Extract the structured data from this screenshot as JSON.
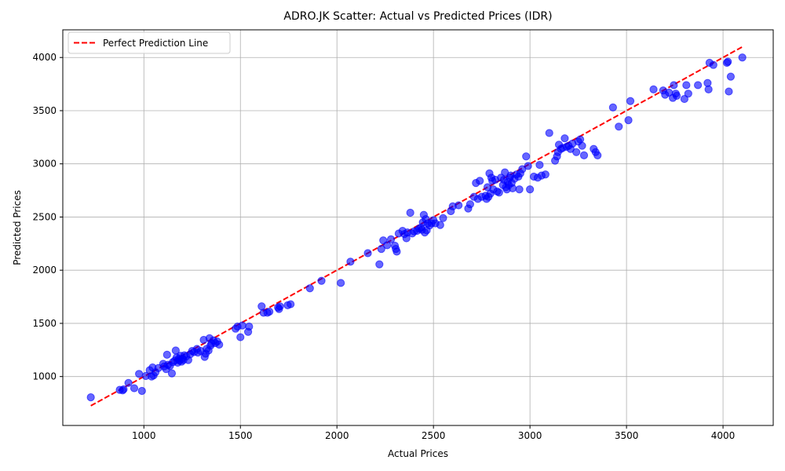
{
  "chart_data": {
    "type": "scatter",
    "title": "ADRO.JK Scatter: Actual vs Predicted Prices (IDR)",
    "xlabel": "Actual Prices",
    "ylabel": "Predicted Prices",
    "xlim": [
      580,
      4260
    ],
    "ylim": [
      540,
      4260
    ],
    "xticks": [
      1000,
      1500,
      2000,
      2500,
      3000,
      3500,
      4000
    ],
    "yticks": [
      1000,
      1500,
      2000,
      2500,
      3000,
      3500,
      4000
    ],
    "grid": true,
    "legend_position": "top-left",
    "colors": {
      "points": "#0000ff",
      "reference_line": "#ff0000"
    },
    "series": [
      {
        "name": "",
        "style": "markers",
        "points": [
          [
            725,
            805
          ],
          [
            875,
            875
          ],
          [
            890,
            870
          ],
          [
            895,
            880
          ],
          [
            920,
            940
          ],
          [
            950,
            890
          ],
          [
            975,
            1025
          ],
          [
            990,
            865
          ],
          [
            1010,
            1005
          ],
          [
            1030,
            1060
          ],
          [
            1040,
            1000
          ],
          [
            1045,
            1085
          ],
          [
            1050,
            1010
          ],
          [
            1060,
            1040
          ],
          [
            1075,
            1080
          ],
          [
            1100,
            1120
          ],
          [
            1105,
            1095
          ],
          [
            1115,
            1070
          ],
          [
            1120,
            1205
          ],
          [
            1125,
            1110
          ],
          [
            1135,
            1100
          ],
          [
            1145,
            1030
          ],
          [
            1150,
            1135
          ],
          [
            1160,
            1150
          ],
          [
            1165,
            1245
          ],
          [
            1170,
            1180
          ],
          [
            1175,
            1130
          ],
          [
            1180,
            1165
          ],
          [
            1185,
            1150
          ],
          [
            1190,
            1195
          ],
          [
            1195,
            1140
          ],
          [
            1200,
            1170
          ],
          [
            1205,
            1155
          ],
          [
            1210,
            1200
          ],
          [
            1220,
            1190
          ],
          [
            1230,
            1155
          ],
          [
            1240,
            1210
          ],
          [
            1250,
            1240
          ],
          [
            1260,
            1230
          ],
          [
            1275,
            1260
          ],
          [
            1280,
            1225
          ],
          [
            1295,
            1240
          ],
          [
            1310,
            1345
          ],
          [
            1315,
            1185
          ],
          [
            1320,
            1215
          ],
          [
            1325,
            1260
          ],
          [
            1335,
            1245
          ],
          [
            1340,
            1360
          ],
          [
            1345,
            1290
          ],
          [
            1350,
            1310
          ],
          [
            1360,
            1340
          ],
          [
            1370,
            1315
          ],
          [
            1380,
            1330
          ],
          [
            1390,
            1300
          ],
          [
            1475,
            1450
          ],
          [
            1485,
            1470
          ],
          [
            1500,
            1370
          ],
          [
            1510,
            1480
          ],
          [
            1540,
            1420
          ],
          [
            1545,
            1470
          ],
          [
            1610,
            1660
          ],
          [
            1620,
            1600
          ],
          [
            1640,
            1600
          ],
          [
            1650,
            1610
          ],
          [
            1695,
            1650
          ],
          [
            1700,
            1635
          ],
          [
            1705,
            1660
          ],
          [
            1745,
            1670
          ],
          [
            1760,
            1680
          ],
          [
            1860,
            1830
          ],
          [
            1920,
            1900
          ],
          [
            2020,
            1880
          ],
          [
            2070,
            2080
          ],
          [
            2160,
            2160
          ],
          [
            2220,
            2055
          ],
          [
            2230,
            2200
          ],
          [
            2240,
            2280
          ],
          [
            2260,
            2235
          ],
          [
            2280,
            2290
          ],
          [
            2300,
            2230
          ],
          [
            2305,
            2200
          ],
          [
            2310,
            2175
          ],
          [
            2320,
            2345
          ],
          [
            2340,
            2370
          ],
          [
            2350,
            2340
          ],
          [
            2360,
            2300
          ],
          [
            2365,
            2355
          ],
          [
            2380,
            2540
          ],
          [
            2390,
            2345
          ],
          [
            2400,
            2365
          ],
          [
            2415,
            2370
          ],
          [
            2425,
            2390
          ],
          [
            2435,
            2400
          ],
          [
            2440,
            2380
          ],
          [
            2445,
            2450
          ],
          [
            2450,
            2520
          ],
          [
            2455,
            2355
          ],
          [
            2460,
            2480
          ],
          [
            2465,
            2375
          ],
          [
            2470,
            2440
          ],
          [
            2480,
            2420
          ],
          [
            2490,
            2440
          ],
          [
            2500,
            2470
          ],
          [
            2510,
            2440
          ],
          [
            2535,
            2425
          ],
          [
            2550,
            2490
          ],
          [
            2590,
            2555
          ],
          [
            2600,
            2600
          ],
          [
            2630,
            2610
          ],
          [
            2680,
            2580
          ],
          [
            2690,
            2620
          ],
          [
            2710,
            2690
          ],
          [
            2720,
            2820
          ],
          [
            2730,
            2670
          ],
          [
            2740,
            2840
          ],
          [
            2750,
            2690
          ],
          [
            2770,
            2700
          ],
          [
            2775,
            2670
          ],
          [
            2780,
            2780
          ],
          [
            2785,
            2690
          ],
          [
            2790,
            2910
          ],
          [
            2795,
            2720
          ],
          [
            2800,
            2870
          ],
          [
            2805,
            2840
          ],
          [
            2810,
            2760
          ],
          [
            2820,
            2850
          ],
          [
            2830,
            2740
          ],
          [
            2840,
            2730
          ],
          [
            2850,
            2870
          ],
          [
            2860,
            2800
          ],
          [
            2865,
            2850
          ],
          [
            2870,
            2920
          ],
          [
            2875,
            2780
          ],
          [
            2880,
            2760
          ],
          [
            2885,
            2830
          ],
          [
            2890,
            2800
          ],
          [
            2895,
            2870
          ],
          [
            2900,
            2890
          ],
          [
            2905,
            2820
          ],
          [
            2910,
            2770
          ],
          [
            2920,
            2860
          ],
          [
            2930,
            2900
          ],
          [
            2940,
            2880
          ],
          [
            2945,
            2760
          ],
          [
            2950,
            2910
          ],
          [
            2960,
            2950
          ],
          [
            2980,
            3070
          ],
          [
            2990,
            2980
          ],
          [
            3000,
            2760
          ],
          [
            3020,
            2880
          ],
          [
            3040,
            2870
          ],
          [
            3050,
            2990
          ],
          [
            3060,
            2890
          ],
          [
            3080,
            2900
          ],
          [
            3100,
            3290
          ],
          [
            3130,
            3030
          ],
          [
            3140,
            3070
          ],
          [
            3145,
            3110
          ],
          [
            3150,
            3180
          ],
          [
            3160,
            3140
          ],
          [
            3170,
            3150
          ],
          [
            3180,
            3240
          ],
          [
            3190,
            3160
          ],
          [
            3200,
            3170
          ],
          [
            3210,
            3140
          ],
          [
            3220,
            3190
          ],
          [
            3240,
            3110
          ],
          [
            3250,
            3210
          ],
          [
            3260,
            3230
          ],
          [
            3270,
            3170
          ],
          [
            3280,
            3080
          ],
          [
            3330,
            3140
          ],
          [
            3340,
            3110
          ],
          [
            3350,
            3080
          ],
          [
            3430,
            3530
          ],
          [
            3460,
            3350
          ],
          [
            3510,
            3410
          ],
          [
            3520,
            3590
          ],
          [
            3640,
            3700
          ],
          [
            3690,
            3690
          ],
          [
            3700,
            3650
          ],
          [
            3720,
            3670
          ],
          [
            3740,
            3620
          ],
          [
            3745,
            3740
          ],
          [
            3755,
            3660
          ],
          [
            3760,
            3640
          ],
          [
            3800,
            3610
          ],
          [
            3810,
            3740
          ],
          [
            3820,
            3660
          ],
          [
            3870,
            3740
          ],
          [
            3920,
            3760
          ],
          [
            3925,
            3700
          ],
          [
            3930,
            3950
          ],
          [
            3950,
            3930
          ],
          [
            4020,
            3950
          ],
          [
            4025,
            3960
          ],
          [
            4030,
            3680
          ],
          [
            4040,
            3820
          ],
          [
            4100,
            4000
          ]
        ]
      },
      {
        "name": "Perfect Prediction Line",
        "style": "dashed-line",
        "points": [
          [
            725,
            725
          ],
          [
            4100,
            4100
          ]
        ]
      }
    ]
  }
}
